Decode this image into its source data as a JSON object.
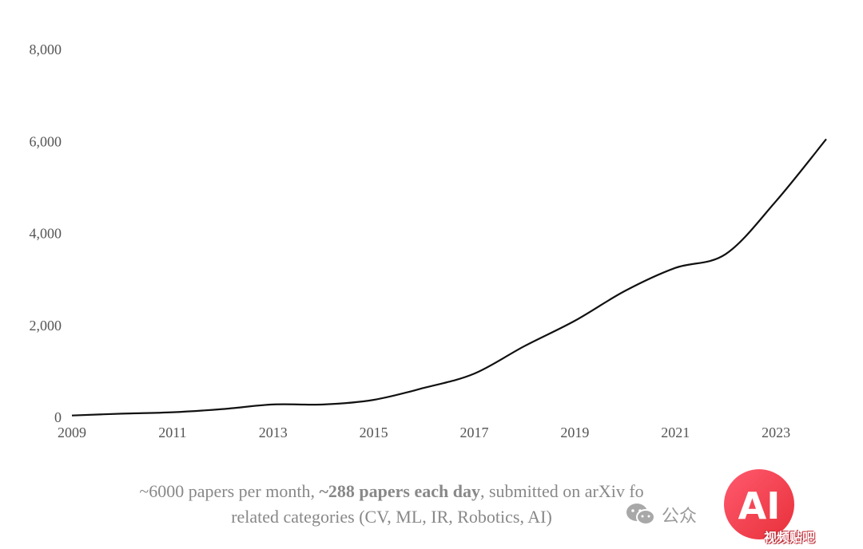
{
  "chart_data": {
    "type": "line",
    "x": [
      2009,
      2010,
      2011,
      2012,
      2013,
      2014,
      2015,
      2016,
      2017,
      2018,
      2019,
      2020,
      2021,
      2022,
      2023,
      2024
    ],
    "series": [
      {
        "values": [
          40,
          80,
          110,
          180,
          280,
          280,
          380,
          640,
          950,
          1550,
          2100,
          2750,
          3250,
          3550,
          4700,
          6050
        ]
      }
    ],
    "xticks": [
      "2009",
      "2011",
      "2013",
      "2015",
      "2017",
      "2019",
      "2021",
      "2023"
    ],
    "yticks": [
      "0",
      "2,000",
      "4,000",
      "6,000",
      "8,000"
    ],
    "xlim": [
      2009,
      2024
    ],
    "ylim": [
      0,
      8000
    ],
    "grid": false,
    "line_color": "#111111"
  },
  "caption": {
    "line1_before": "~6000 papers per month, ",
    "line1_bold": "~288 papers each day",
    "line1_after": ", submitted on arXiv fo",
    "line2": "related categories (CV, ML, IR, Robotics, AI)"
  },
  "watermark": {
    "wechat_text": "公众",
    "logo_text": "AI",
    "logo_subtext": "视频贴吧"
  }
}
